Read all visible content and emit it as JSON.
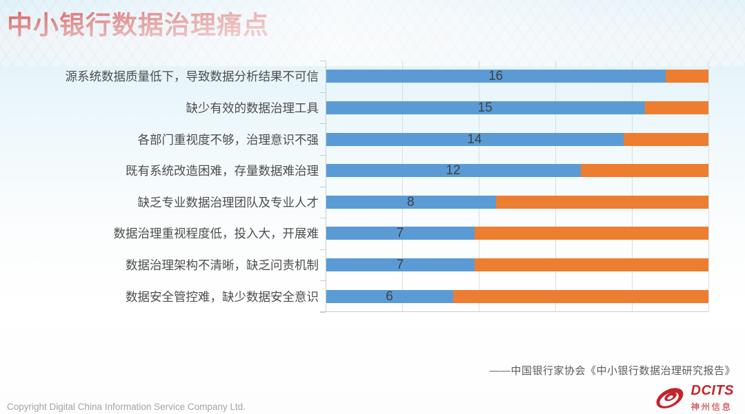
{
  "slide": {
    "title": "中小银行数据治理痛点",
    "source": "——中国银行家协会《中小银行数据治理研究报告》",
    "copyright": "Copyright  Digital China Information Service Company Ltd.",
    "logo": {
      "name": "DCITS",
      "cn": "神州信息"
    }
  },
  "colors": {
    "title_red": "#c00000",
    "bar_blue": "#5b9bd5",
    "bar_orange": "#ed7d31",
    "logo_red": "#c4232c",
    "gridline": "#d9dde0",
    "background_top": "#d7edf8"
  },
  "chart_data": {
    "type": "bar",
    "orientation": "horizontal-stacked",
    "title": "中小银行数据治理痛点",
    "categories": [
      "源系统数据质量低下，导致数据分析结果不可信",
      "缺少有效的数据治理工具",
      "各部门重视度不够，治理意识不强",
      "既有系统改造困难，存量数据难治理",
      "缺乏专业数据治理团队及专业人才",
      "数据治理重视程度低，投入大，开展难",
      "数据治理架构不清晰，缺乏问责机制",
      "数据安全管控难，缺少数据安全意识"
    ],
    "series": [
      {
        "name": "segment-blue",
        "color": "#5b9bd5",
        "values": [
          16,
          15,
          14,
          12,
          8,
          7,
          7,
          6
        ],
        "labels_shown": true
      },
      {
        "name": "segment-orange",
        "color": "#ed7d31",
        "values": [
          2,
          3,
          4,
          6,
          10,
          11,
          11,
          12
        ],
        "labels_shown": false
      }
    ],
    "row_total": 18,
    "xlim": [
      0,
      18
    ],
    "grid": true,
    "gridline_count": 5,
    "legend_position": "none"
  }
}
